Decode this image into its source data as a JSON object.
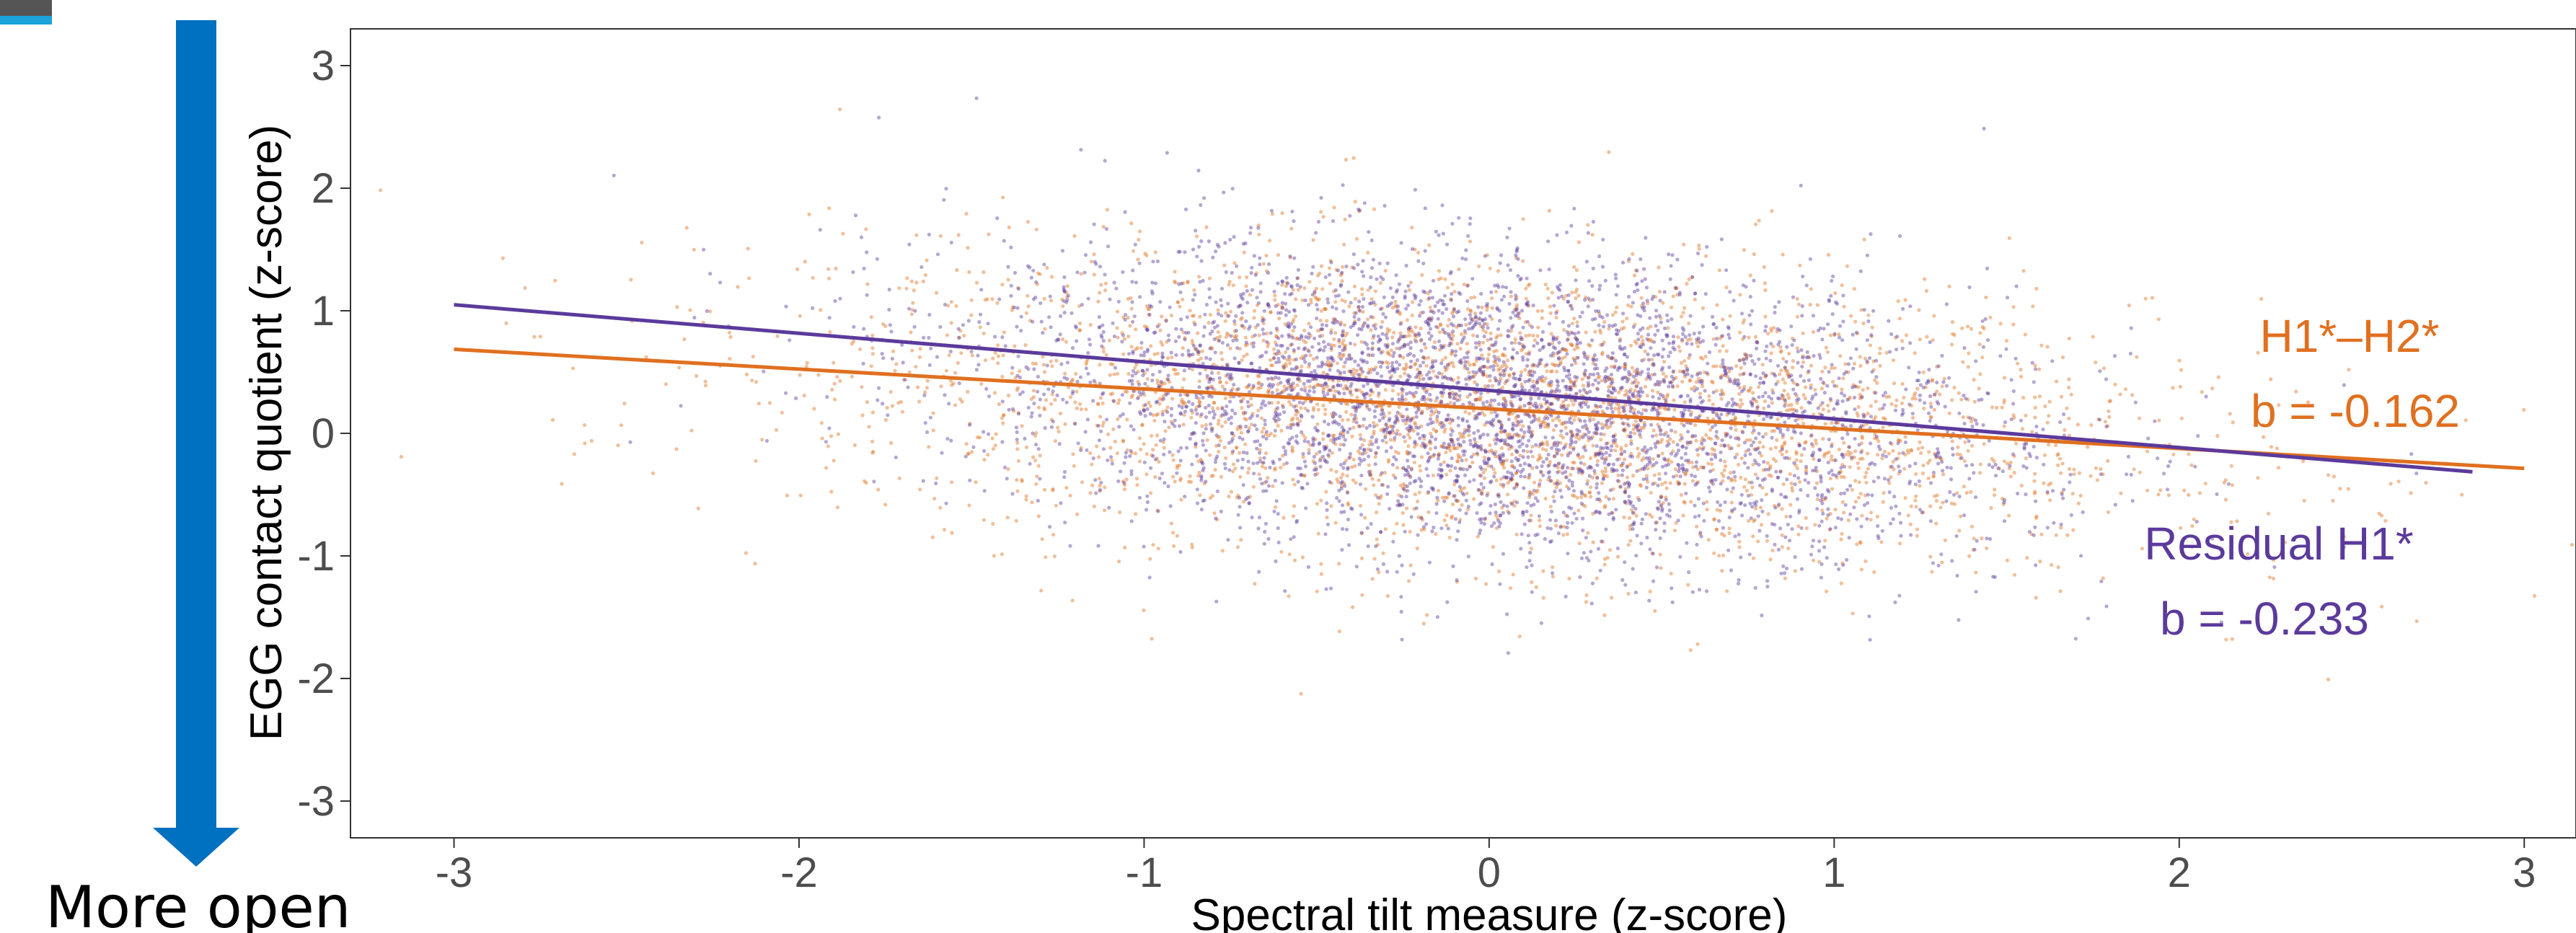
{
  "chart_data": {
    "type": "scatter",
    "xlabel": "Spectral tilt measure (z-score)",
    "ylabel": "EGG contact quotient (z-score)",
    "xlim": [
      -3.3,
      3.15
    ],
    "ylim": [
      -3.3,
      3.3
    ],
    "x_ticks": [
      "-3",
      "-2",
      "-1",
      "0",
      "1",
      "2",
      "3"
    ],
    "y_ticks": [
      "3",
      "2",
      "1",
      "0",
      "-1",
      "-2",
      "-3"
    ],
    "grid": false,
    "series": [
      {
        "name": "H1*–H2*",
        "color": "#e07020",
        "slope": -0.162,
        "intercept": 0.2,
        "fit_x": [
          -3.0,
          3.0
        ],
        "fit_y": [
          0.686,
          -0.286
        ],
        "cloud": {
          "center_x": 0.0,
          "center_y": 0.2,
          "sd_x": 0.95,
          "sd_y": 0.6,
          "points": 3500
        },
        "annotation": {
          "label": "H1*–H2*",
          "stat": "b = -0.162"
        }
      },
      {
        "name": "Residual H1*",
        "color": "#5b3a9c",
        "slope": -0.233,
        "intercept": 0.35,
        "fit_x": [
          -3.0,
          2.85
        ],
        "fit_y": [
          1.049,
          -0.314
        ],
        "cloud": {
          "center_x": 0.0,
          "center_y": 0.25,
          "sd_x": 0.75,
          "sd_y": 0.6,
          "points": 4000
        },
        "annotation": {
          "label": "Residual H1*",
          "stat": "b = -0.233"
        }
      }
    ]
  },
  "side_arrow": {
    "label": "More open",
    "color": "#0070c0"
  },
  "corner_tab": {
    "top_color": "#555555",
    "bottom_color": "#1aa3d9"
  }
}
